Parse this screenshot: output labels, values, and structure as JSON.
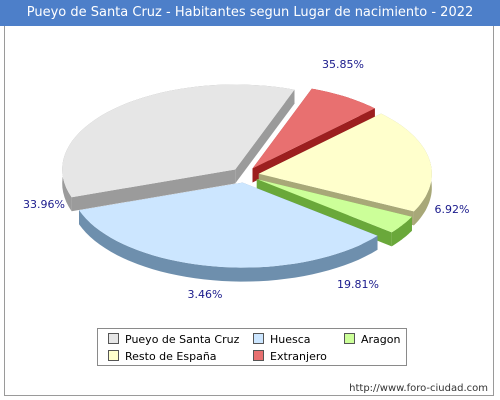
{
  "title": "Pueyo de Santa Cruz - Habitantes segun Lugar de nacimiento - 2022",
  "footer_url": "http://www.foro-ciudad.com",
  "chart_data": {
    "type": "pie",
    "title": "Pueyo de Santa Cruz - Habitantes segun Lugar de nacimiento - 2022",
    "slices": [
      {
        "label": "Pueyo de Santa Cruz",
        "value": 35.85,
        "value_label": "35.85%",
        "color": "#e6e6e6",
        "side_color": "#9b9b9b"
      },
      {
        "label": "Extranjero",
        "value": 6.92,
        "value_label": "6.92%",
        "color": "#e87070",
        "side_color": "#9c1f1f"
      },
      {
        "label": "Resto de España",
        "value": 19.81,
        "value_label": "19.81%",
        "color": "#ffffcc",
        "side_color": "#a8a878"
      },
      {
        "label": "Aragon",
        "value": 3.46,
        "value_label": "3.46%",
        "color": "#ccff99",
        "side_color": "#6aa83a"
      },
      {
        "label": "Huesca",
        "value": 33.96,
        "value_label": "33.96%",
        "color": "#cce6ff",
        "side_color": "#6e8fad"
      }
    ],
    "legend": {
      "position": "bottom",
      "items": [
        {
          "label": "Pueyo de Santa Cruz",
          "color": "#e6e6e6"
        },
        {
          "label": "Huesca",
          "color": "#cce6ff"
        },
        {
          "label": "Aragon",
          "color": "#ccff99"
        },
        {
          "label": "Resto de España",
          "color": "#ffffcc"
        },
        {
          "label": "Extranjero",
          "color": "#e87070"
        }
      ]
    }
  }
}
